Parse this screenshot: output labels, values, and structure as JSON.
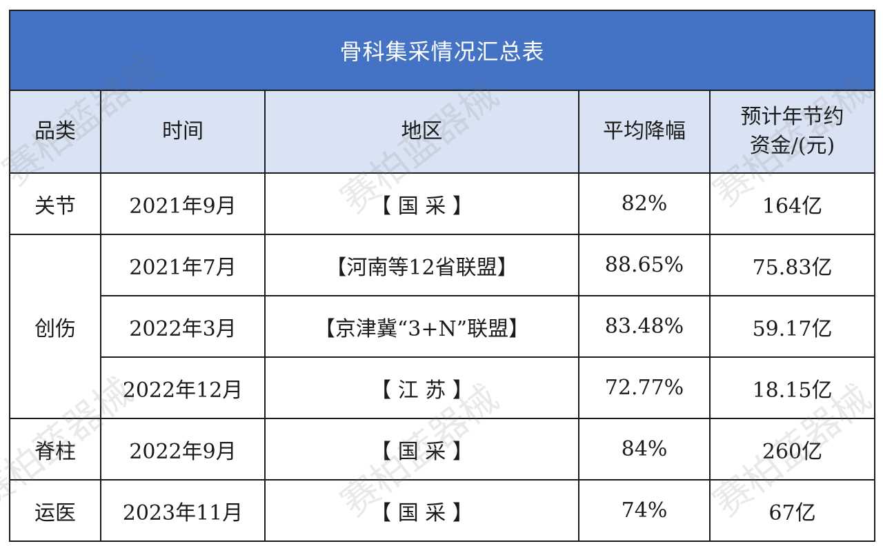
{
  "title": "骨科集采情况汇总表",
  "colors": {
    "title_bg": "#4472c4",
    "header_bg": "#dae3f3",
    "border": "#1a1a1a"
  },
  "watermark": "赛柏蓝器械",
  "headers": {
    "category": "品类",
    "time": "时间",
    "region": "地区",
    "avg_reduction": "平均降幅",
    "savings_line1": "预计年节约",
    "savings_line2": "资金/(元)"
  },
  "rows": [
    {
      "category": "关节",
      "time": "2021年9月",
      "region": "【 国 采 】",
      "avg_reduction": "82%",
      "savings": "164亿"
    },
    {
      "category": "创伤",
      "time": "2021年7月",
      "region": "【河南等12省联盟】",
      "avg_reduction": "88.65%",
      "savings": "75.83亿"
    },
    {
      "category": "",
      "time": "2022年3月",
      "region": "【京津冀“3+N”联盟】",
      "avg_reduction": "83.48%",
      "savings": "59.17亿"
    },
    {
      "category": "",
      "time": "2022年12月",
      "region": "【 江 苏 】",
      "avg_reduction": "72.77%",
      "savings": "18.15亿"
    },
    {
      "category": "脊柱",
      "time": "2022年9月",
      "region": "【 国 采 】",
      "avg_reduction": "84%",
      "savings": "260亿"
    },
    {
      "category": "运医",
      "time": "2023年11月",
      "region": "【 国 采 】",
      "avg_reduction": "74%",
      "savings": "67亿"
    }
  ]
}
